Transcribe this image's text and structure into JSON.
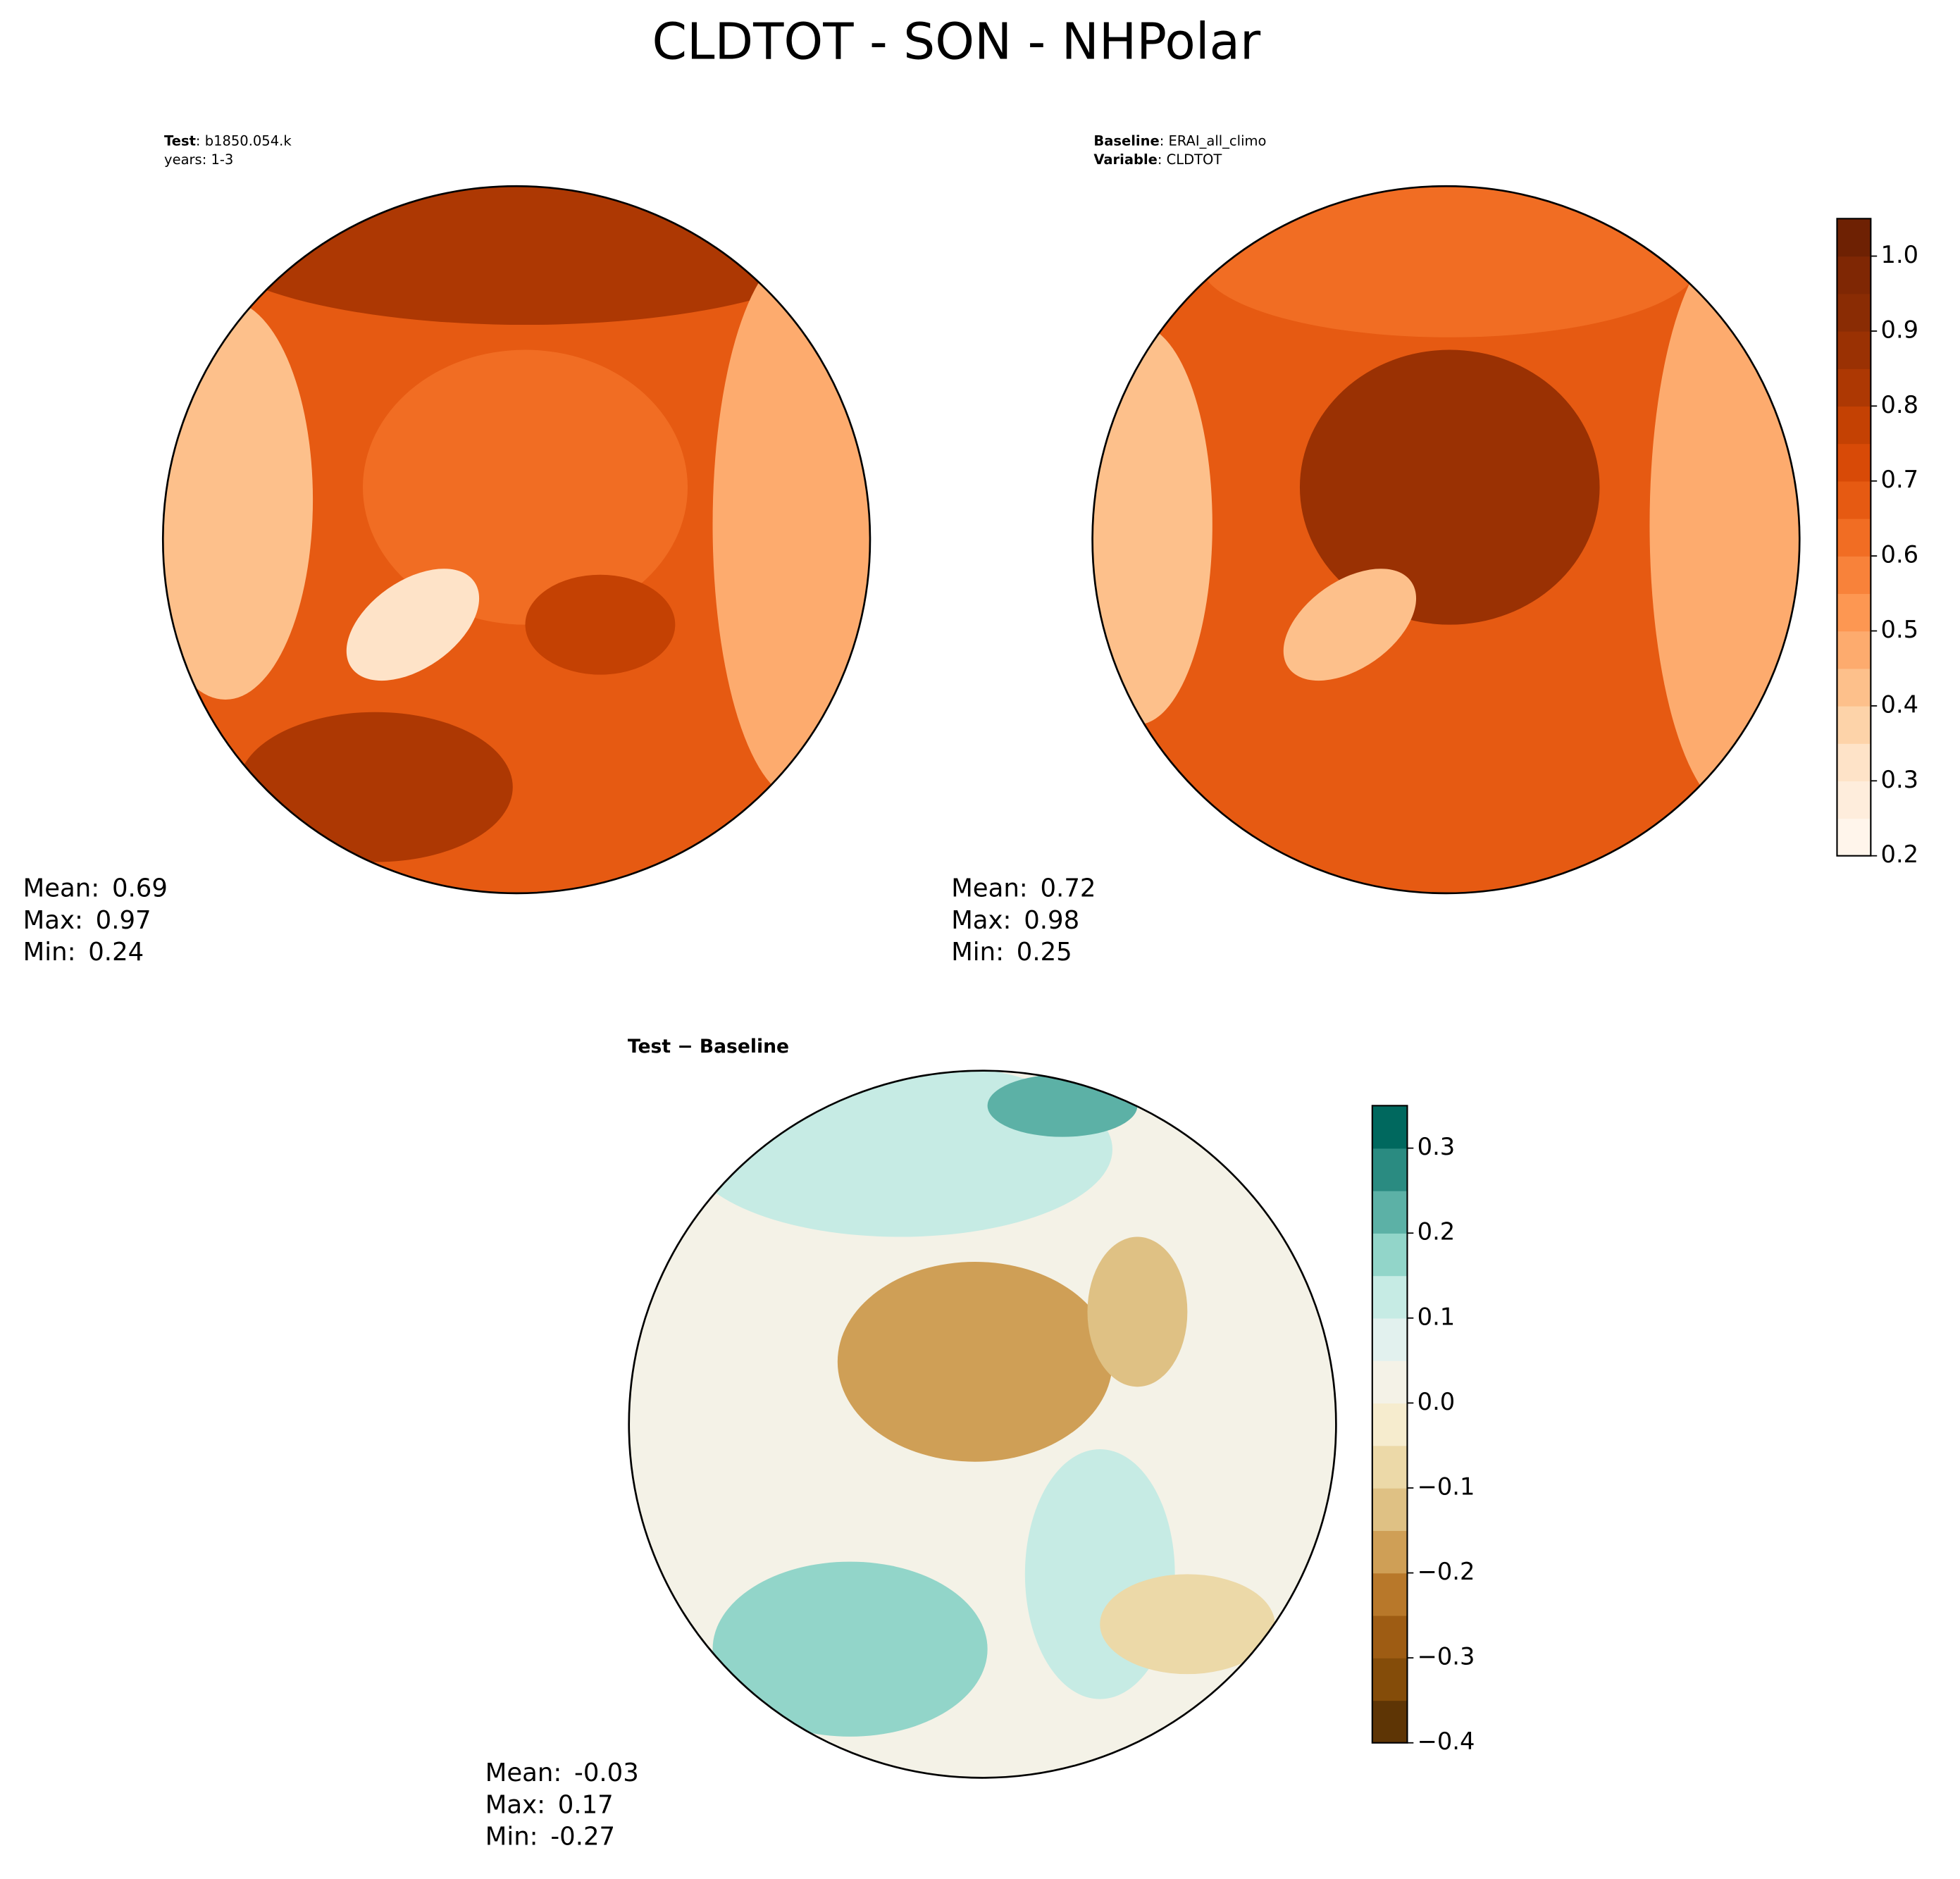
{
  "title": "CLDTOT - SON - NHPolar",
  "panels": [
    {
      "header": [
        {
          "bold": "Test",
          "text": ": b1850.054.k"
        },
        {
          "bold": "",
          "text": "years: 1-3"
        }
      ],
      "stats": [
        {
          "label": "Mean:",
          "value": 0.69
        },
        {
          "label": "Max:",
          "value": 0.97
        },
        {
          "label": "Min:",
          "value": 0.24
        }
      ]
    },
    {
      "header": [
        {
          "bold": "Baseline",
          "text": ": ERAI_all_climo"
        },
        {
          "bold": "Variable",
          "text": ": CLDTOT"
        }
      ],
      "stats": [
        {
          "label": "Mean:",
          "value": 0.72
        },
        {
          "label": "Max:",
          "value": 0.98
        },
        {
          "label": "Min:",
          "value": 0.25
        }
      ]
    },
    {
      "header": [
        {
          "bold": "Test − Baseline",
          "text": ""
        }
      ],
      "stats": [
        {
          "label": "Mean:",
          "value": -0.03
        },
        {
          "label": "Max:",
          "value": 0.17
        },
        {
          "label": "Min:",
          "value": -0.27
        }
      ]
    }
  ],
  "colorbars": [
    {
      "lim": [
        0.2,
        1.05
      ],
      "ticks": [
        0.2,
        0.3,
        0.4,
        0.5,
        0.6,
        0.7,
        0.8,
        0.9,
        {
          "value": 1.0,
          "label": "1.0"
        }
      ],
      "colors": [
        "#fff5eb",
        "#feeddc",
        "#fee3c8",
        "#fdd3a9",
        "#fdc08b",
        "#fdab6e",
        "#fd9752",
        "#f8823a",
        "#f16d23",
        "#e65a12",
        "#d84a07",
        "#c44103",
        "#ad3803",
        "#9a3103",
        "#8a2c04",
        "#7f2704",
        "#6e2103"
      ]
    },
    {
      "lim": [
        -0.4,
        0.35
      ],
      "ticks": [
        {
          "value": -0.4,
          "label": "−0.4"
        },
        {
          "value": -0.3,
          "label": "−0.3"
        },
        {
          "value": -0.2,
          "label": "−0.2"
        },
        {
          "value": -0.1,
          "label": "−0.1"
        },
        {
          "value": 0.0,
          "label": "0.0"
        },
        0.1,
        0.2,
        0.3
      ],
      "colors": [
        "#5e3505",
        "#844c09",
        "#9e5c13",
        "#b8782a",
        "#cf9f56",
        "#dfc184",
        "#ecd9a8",
        "#f6ecce",
        "#f4f2e7",
        "#e2f1ee",
        "#c6ebe4",
        "#92d5c9",
        "#5cb1a6",
        "#2a8b81",
        "#00685e"
      ]
    }
  ]
}
